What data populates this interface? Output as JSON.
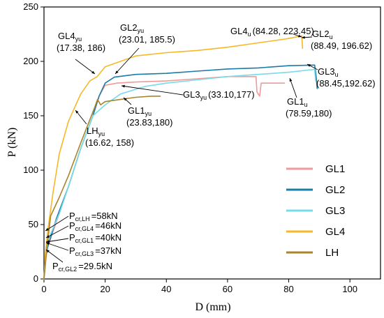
{
  "chart_data": {
    "type": "line",
    "xlabel": "D (mm)",
    "ylabel": "P (kN)",
    "xlim": [
      0,
      110
    ],
    "ylim": [
      0,
      250
    ],
    "xticks": [
      0,
      20,
      40,
      60,
      80,
      100
    ],
    "yticks": [
      0,
      50,
      100,
      150,
      200,
      250
    ],
    "legend_position": "bottom-right",
    "series": [
      {
        "name": "GL1",
        "color": "#f09a9a",
        "x": [
          0,
          0.8,
          2.5,
          5,
          8,
          12,
          16,
          18,
          20,
          23.83,
          30,
          40,
          50,
          60,
          69.3,
          69.6,
          70.5,
          71,
          78.59
        ],
        "y": [
          0,
          25,
          40,
          60,
          85,
          120,
          150,
          168,
          178,
          180,
          181,
          182,
          184,
          186,
          186,
          172,
          168,
          180,
          180
        ]
      },
      {
        "name": "GL2",
        "color": "#1a7ca8",
        "x": [
          0,
          0.6,
          1.2,
          4,
          8,
          12,
          16,
          18,
          20,
          23.01,
          30,
          40,
          50,
          60,
          70,
          80,
          88.49,
          89,
          89.3
        ],
        "y": [
          0,
          20,
          29.5,
          55,
          85,
          120,
          150,
          168,
          180,
          185.5,
          188,
          189,
          191,
          193,
          194,
          196,
          196.62,
          185,
          175
        ]
      },
      {
        "name": "GL3",
        "color": "#77dbe8",
        "x": [
          0,
          0.5,
          1.5,
          5,
          8,
          12,
          16,
          20,
          25,
          33.1,
          40,
          50,
          60,
          70,
          80,
          88.45,
          88.8
        ],
        "y": [
          0,
          20,
          37,
          60,
          85,
          120,
          150,
          160,
          170,
          177,
          180,
          183,
          186,
          188,
          190,
          192.62,
          182
        ]
      },
      {
        "name": "GL4",
        "color": "#f6b827",
        "x": [
          0,
          0.5,
          1.3,
          3,
          5,
          8,
          12,
          15,
          17.38,
          20,
          30,
          40,
          50,
          60,
          70,
          80,
          84.28,
          84.5
        ],
        "y": [
          0,
          25,
          46,
          80,
          115,
          145,
          170,
          182,
          186,
          195,
          205,
          208,
          210,
          213,
          217,
          221,
          223.45,
          212
        ]
      },
      {
        "name": "LH",
        "color": "#a8842a",
        "x": [
          0,
          1,
          2.2,
          5,
          8,
          12,
          16.62,
          17.5,
          18.5,
          20,
          25,
          30,
          35,
          38
        ],
        "y": [
          0,
          30,
          58,
          75,
          95,
          125,
          158,
          165,
          160,
          163,
          165,
          167,
          168,
          168
        ]
      }
    ],
    "annotations": [
      {
        "main": "GL4",
        "sub": "yu",
        "coords": "(17.38, 186)"
      },
      {
        "main": "GL2",
        "sub": "yu",
        "coords": "(23.01, 185.5)"
      },
      {
        "main": "GL4",
        "sub": "u",
        "coords": "(84.28, 223.45)"
      },
      {
        "main": "GL2",
        "sub": "u",
        "coords": "(88.49, 196.62)"
      },
      {
        "main": "GL3",
        "sub": "yu",
        "coords": "(33.10,177)"
      },
      {
        "main": "GL3",
        "sub": "u",
        "coords": "(88.45,192.62)"
      },
      {
        "main": "GL1",
        "sub": "u",
        "coords": "(78.59,180)"
      },
      {
        "main": "GL1",
        "sub": "yu",
        "coords": "(23.83,180)"
      },
      {
        "main": "LH",
        "sub": "yu",
        "coords": "(16.62, 158)"
      },
      {
        "main": "P",
        "sub": "cr,LH",
        "coords": "=58kN"
      },
      {
        "main": "P",
        "sub": "cr,GL4",
        "coords": "=46kN"
      },
      {
        "main": "P",
        "sub": "cr,GL1",
        "coords": "=40kN"
      },
      {
        "main": "P",
        "sub": "cr,GL3",
        "coords": "=37kN"
      },
      {
        "main": "P",
        "sub": "cr,GL2",
        "coords": "=29.5kN"
      }
    ]
  }
}
